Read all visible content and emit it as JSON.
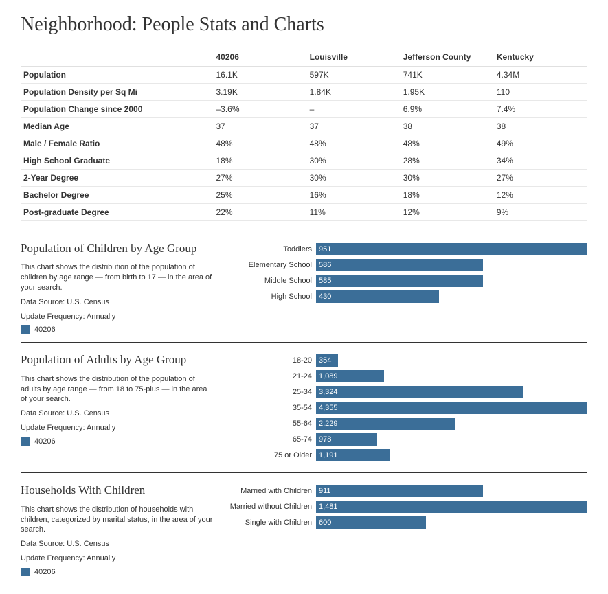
{
  "title": "Neighborhood: People Stats and Charts",
  "colors": {
    "bar": "#3b6e98",
    "text": "#333333",
    "divider": "#333333",
    "row_border": "#e8e8e8",
    "background": "#ffffff"
  },
  "table": {
    "columns": [
      "40206",
      "Louisville",
      "Jefferson County",
      "Kentucky"
    ],
    "rows": [
      {
        "label": "Population",
        "values": [
          "16.1K",
          "597K",
          "741K",
          "4.34M"
        ]
      },
      {
        "label": "Population Density per Sq Mi",
        "values": [
          "3.19K",
          "1.84K",
          "1.95K",
          "110"
        ]
      },
      {
        "label": "Population Change since 2000",
        "values": [
          "–3.6%",
          "–",
          "6.9%",
          "7.4%"
        ]
      },
      {
        "label": "Median Age",
        "values": [
          "37",
          "37",
          "38",
          "38"
        ]
      },
      {
        "label": "Male / Female Ratio",
        "values": [
          "48%",
          "48%",
          "48%",
          "49%"
        ]
      },
      {
        "label": "High School Graduate",
        "values": [
          "18%",
          "30%",
          "28%",
          "34%"
        ]
      },
      {
        "label": "2-Year Degree",
        "values": [
          "27%",
          "30%",
          "30%",
          "27%"
        ]
      },
      {
        "label": "Bachelor Degree",
        "values": [
          "25%",
          "16%",
          "18%",
          "12%"
        ]
      },
      {
        "label": "Post-graduate Degree",
        "values": [
          "22%",
          "11%",
          "12%",
          "9%"
        ]
      }
    ]
  },
  "charts": [
    {
      "title": "Population of Children by Age Group",
      "description": "This chart shows the distribution of the population of children by age range — from birth to 17 — in the area of your search.",
      "source": "Data Source: U.S. Census",
      "frequency": "Update Frequency: Annually",
      "legend_label": "40206",
      "type": "bar",
      "max": 951,
      "bars": [
        {
          "label": "Toddlers",
          "value": 951
        },
        {
          "label": "Elementary School",
          "value": 586
        },
        {
          "label": "Middle School",
          "value": 585
        },
        {
          "label": "High School",
          "value": 430
        }
      ]
    },
    {
      "title": "Population of Adults by Age Group",
      "description": "This chart shows the distribution of the population of adults by age range — from 18 to 75-plus — in the area of your search.",
      "source": "Data Source: U.S. Census",
      "frequency": "Update Frequency: Annually",
      "legend_label": "40206",
      "type": "bar",
      "max": 4355,
      "bars": [
        {
          "label": "18-20",
          "value": 354
        },
        {
          "label": "21-24",
          "value": 1089,
          "display": "1,089"
        },
        {
          "label": "25-34",
          "value": 3324,
          "display": "3,324"
        },
        {
          "label": "35-54",
          "value": 4355,
          "display": "4,355"
        },
        {
          "label": "55-64",
          "value": 2229,
          "display": "2,229"
        },
        {
          "label": "65-74",
          "value": 978
        },
        {
          "label": "75 or Older",
          "value": 1191,
          "display": "1,191"
        }
      ]
    },
    {
      "title": "Households With Children",
      "description": "This chart shows the distribution of households with children, categorized by marital status, in the area of your search.",
      "source": "Data Source: U.S. Census",
      "frequency": "Update Frequency: Annually",
      "legend_label": "40206",
      "type": "bar",
      "max": 1481,
      "bars": [
        {
          "label": "Married with Children",
          "value": 911
        },
        {
          "label": "Married without Children",
          "value": 1481,
          "display": "1,481"
        },
        {
          "label": "Single with Children",
          "value": 600
        }
      ]
    }
  ]
}
